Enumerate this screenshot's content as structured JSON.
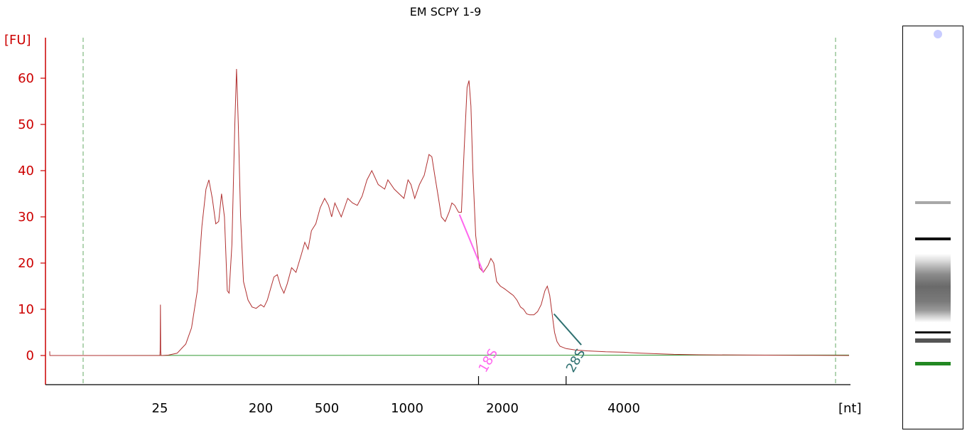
{
  "chart_data": {
    "type": "line",
    "title": "EM SCPY 1-9",
    "ylabel": "[FU]",
    "xlabel": "[nt]",
    "ylim": [
      -6,
      68
    ],
    "y_ticks": [
      "0",
      "10",
      "20",
      "30",
      "40",
      "50",
      "60"
    ],
    "x_ticks": [
      "25",
      "200",
      "500",
      "1000",
      "2000",
      "4000"
    ],
    "markers": [
      {
        "label": "18S",
        "color": "#ff66ee",
        "x_nt": 1750,
        "from": [
          1550,
          30.5
        ],
        "to": [
          1800,
          18
        ]
      },
      {
        "label": "28S",
        "color": "#2e7070",
        "x_nt": 3050,
        "from": [
          2850,
          9
        ],
        "to": [
          3300,
          2.3
        ]
      }
    ],
    "colors": {
      "trace": "#b03030",
      "baseline": "#339933",
      "axis": "#cc0000",
      "ladder_marker": "#228822"
    },
    "series": [
      {
        "points": [
          [
            0,
            0.9
          ],
          [
            0.01,
            0.1
          ],
          [
            0.03,
            0
          ],
          [
            0.5,
            0
          ],
          [
            0.8,
            0
          ],
          [
            25,
            0
          ],
          [
            25.5,
            1
          ],
          [
            26,
            11
          ],
          [
            26.5,
            1
          ],
          [
            27,
            0
          ],
          [
            30,
            0
          ],
          [
            40,
            0.1
          ],
          [
            55,
            0.5
          ],
          [
            70,
            2.5
          ],
          [
            80,
            6
          ],
          [
            90,
            14
          ],
          [
            98,
            28
          ],
          [
            105,
            36
          ],
          [
            110,
            38
          ],
          [
            116,
            34
          ],
          [
            122,
            28.5
          ],
          [
            127,
            29
          ],
          [
            132,
            35
          ],
          [
            137,
            30
          ],
          [
            142,
            14
          ],
          [
            145,
            13.5
          ],
          [
            150,
            24
          ],
          [
            155,
            50
          ],
          [
            158,
            62
          ],
          [
            161,
            50
          ],
          [
            165,
            30
          ],
          [
            170,
            16
          ],
          [
            178,
            12
          ],
          [
            185,
            10.5
          ],
          [
            192,
            10.2
          ],
          [
            200,
            11
          ],
          [
            215,
            10.5
          ],
          [
            230,
            12
          ],
          [
            245,
            14.5
          ],
          [
            260,
            17
          ],
          [
            275,
            17.5
          ],
          [
            290,
            15
          ],
          [
            305,
            13.5
          ],
          [
            320,
            15.5
          ],
          [
            340,
            19
          ],
          [
            360,
            18
          ],
          [
            385,
            22
          ],
          [
            400,
            24.5
          ],
          [
            415,
            23
          ],
          [
            430,
            27
          ],
          [
            450,
            28.5
          ],
          [
            470,
            32
          ],
          [
            490,
            34
          ],
          [
            510,
            32.5
          ],
          [
            530,
            30
          ],
          [
            550,
            33
          ],
          [
            570,
            31.5
          ],
          [
            590,
            30
          ],
          [
            610,
            32
          ],
          [
            630,
            34
          ],
          [
            660,
            33
          ],
          [
            690,
            32.5
          ],
          [
            720,
            34.5
          ],
          [
            750,
            38
          ],
          [
            780,
            40
          ],
          [
            820,
            37
          ],
          [
            860,
            36
          ],
          [
            880,
            38
          ],
          [
            920,
            36
          ],
          [
            980,
            34
          ],
          [
            1010,
            38
          ],
          [
            1040,
            37
          ],
          [
            1080,
            34
          ],
          [
            1130,
            37
          ],
          [
            1180,
            39
          ],
          [
            1230,
            43.5
          ],
          [
            1260,
            43
          ],
          [
            1290,
            39
          ],
          [
            1330,
            34
          ],
          [
            1360,
            30
          ],
          [
            1400,
            29
          ],
          [
            1440,
            31
          ],
          [
            1470,
            33
          ],
          [
            1500,
            32.5
          ],
          [
            1540,
            31
          ],
          [
            1570,
            31
          ],
          [
            1600,
            45
          ],
          [
            1630,
            58
          ],
          [
            1650,
            59.5
          ],
          [
            1670,
            54
          ],
          [
            1690,
            40
          ],
          [
            1720,
            26
          ],
          [
            1760,
            19
          ],
          [
            1800,
            18
          ],
          [
            1850,
            19.5
          ],
          [
            1880,
            21
          ],
          [
            1910,
            20
          ],
          [
            1940,
            16
          ],
          [
            1980,
            15
          ],
          [
            2030,
            14.5
          ],
          [
            2080,
            14
          ],
          [
            2130,
            13.5
          ],
          [
            2180,
            13
          ],
          [
            2240,
            12
          ],
          [
            2300,
            10.5
          ],
          [
            2350,
            10
          ],
          [
            2400,
            9
          ],
          [
            2450,
            8.8
          ],
          [
            2520,
            8.8
          ],
          [
            2580,
            9.5
          ],
          [
            2640,
            11
          ],
          [
            2700,
            14
          ],
          [
            2740,
            15
          ],
          [
            2780,
            13
          ],
          [
            2820,
            9
          ],
          [
            2860,
            5
          ],
          [
            2900,
            3
          ],
          [
            2950,
            2
          ],
          [
            3050,
            1.5
          ],
          [
            3200,
            1.2
          ],
          [
            3400,
            1
          ],
          [
            3700,
            0.8
          ],
          [
            4000,
            0.7
          ],
          [
            4300,
            0.6
          ],
          [
            4700,
            0.5
          ],
          [
            5200,
            0.4
          ],
          [
            5500,
            0.35
          ],
          [
            6000,
            0.25
          ],
          [
            7000,
            0.15
          ],
          [
            9000,
            0.1
          ],
          [
            11000,
            0.05
          ],
          [
            13000,
            0
          ]
        ]
      }
    ]
  }
}
